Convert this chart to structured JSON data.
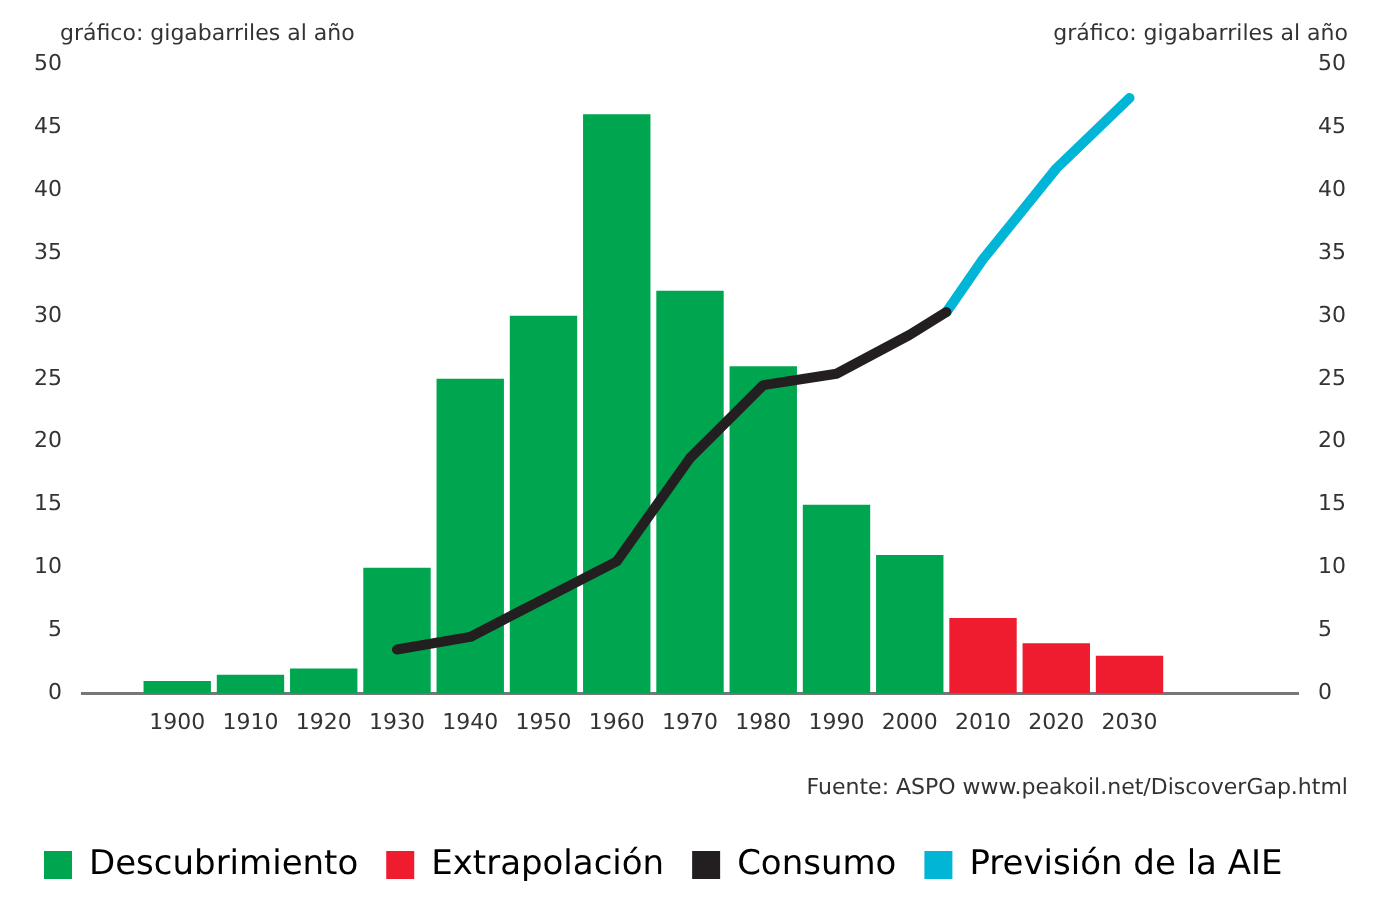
{
  "chart_data": {
    "type": "bar",
    "ylabel": "gráfico: gigabarriles al año",
    "y2label": "gráfico: gigabarriles al año",
    "xlim": [
      1887,
      2053
    ],
    "xticks": [
      1900,
      1910,
      1920,
      1930,
      1940,
      1950,
      1960,
      1970,
      1980,
      1990,
      2000,
      2010,
      2020,
      2030
    ],
    "ylim": [
      0,
      50
    ],
    "yticks": [
      0,
      5,
      10,
      15,
      20,
      25,
      30,
      35,
      40,
      45,
      50
    ],
    "y2lim": [
      0,
      50
    ],
    "y2ticks": [
      0,
      5,
      10,
      15,
      20,
      25,
      30,
      35,
      40,
      45,
      50
    ],
    "series": [
      {
        "name": "Descubrimiento",
        "color": "#00a64f",
        "x": [
          1900,
          1910,
          1920,
          1930,
          1940,
          1950,
          1960,
          1970,
          1980,
          1990,
          2000
        ],
        "values": [
          1,
          1.5,
          2,
          10,
          25,
          30,
          46,
          32,
          26,
          15,
          11
        ]
      },
      {
        "name": "Extrapolación",
        "color": "#ee1c2e",
        "x": [
          2010,
          2020,
          2030
        ],
        "values": [
          6,
          4,
          3
        ]
      },
      {
        "name": "Consumo",
        "type": "line",
        "color": "#231f20",
        "x": [
          1930,
          1940,
          1950,
          1960,
          1970,
          1980,
          1990,
          2000,
          2005
        ],
        "values": [
          3.5,
          4.5,
          7.5,
          10.5,
          18.7,
          24.5,
          25.4,
          28.5,
          30.3
        ]
      },
      {
        "name": "Previsión de la AIE",
        "type": "line",
        "color": "#00b5d6",
        "x": [
          2005,
          2010,
          2020,
          2030
        ],
        "values": [
          30.3,
          34.5,
          41.7,
          47.3
        ]
      }
    ],
    "grid": false,
    "legend": "bottom",
    "marker": "none",
    "line_style": "solid",
    "annotations": [
      "Fuente: ASPO www.peakoil.net/DiscoverGap.html"
    ]
  }
}
